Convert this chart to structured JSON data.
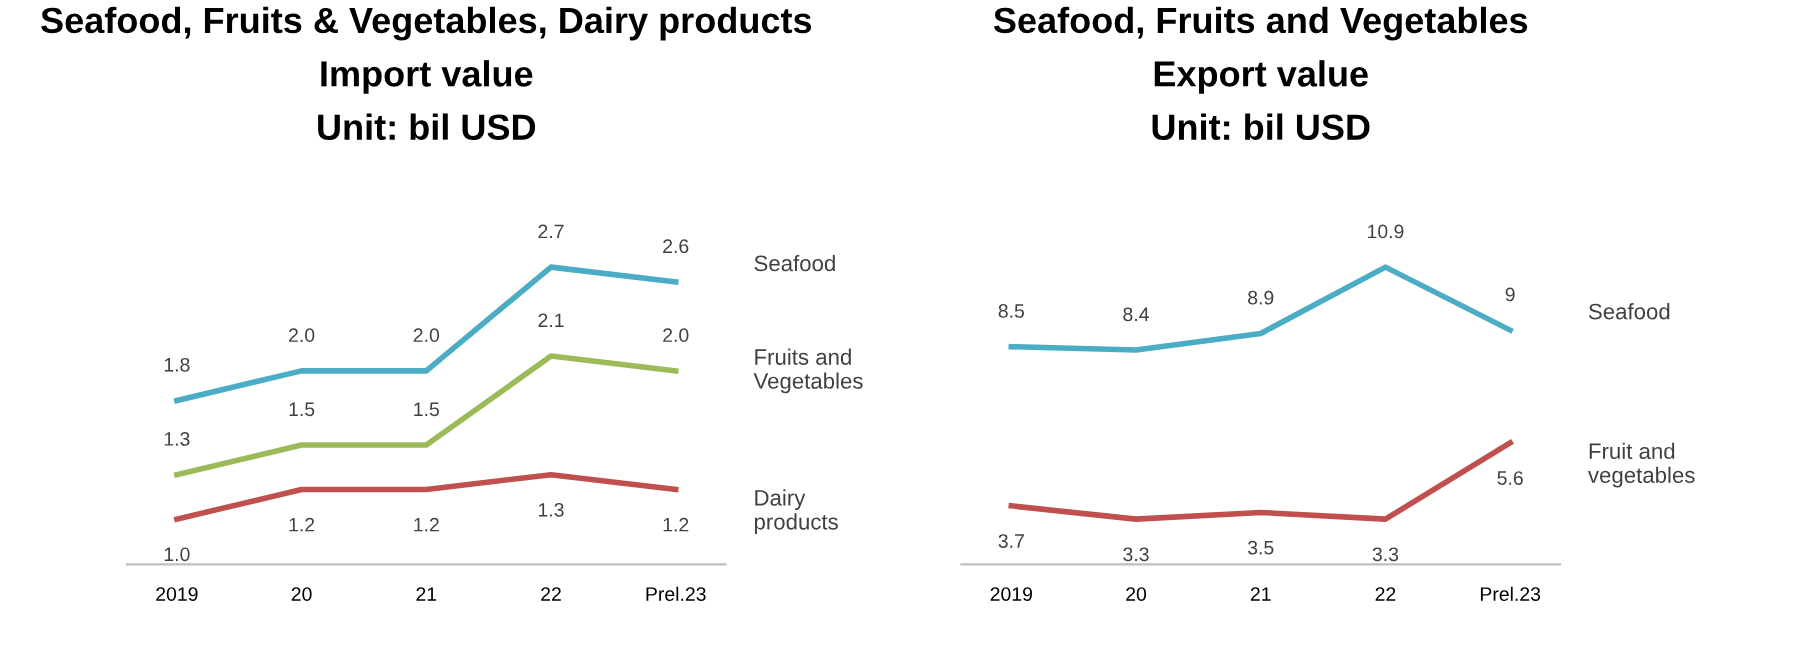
{
  "chart_data": [
    {
      "type": "line",
      "title": "Seafood, Fruits & Vegetables, Dairy products\nImport value\nUnit: bil USD",
      "categories": [
        "2019",
        "20",
        "21",
        "22",
        "Prel.23"
      ],
      "tick_labels": "x",
      "grid": false,
      "legend": false,
      "marker": "none",
      "line_style": "solid",
      "series": [
        {
          "name": "Seafood",
          "color": "#4bacc6",
          "values": [
            1.8,
            2.0,
            2.0,
            2.7,
            2.6
          ],
          "value_labels": [
            "1.8",
            "2.0",
            "2.0",
            "2.7",
            "2.6"
          ]
        },
        {
          "name": "Fruits and\nVegetables",
          "color": "#9bbb59",
          "values": [
            1.3,
            1.5,
            1.5,
            2.1,
            2.0
          ],
          "value_labels": [
            "1.3",
            "1.5",
            "1.5",
            "2.1",
            "2.0"
          ]
        },
        {
          "name": "Dairy\nproducts",
          "color": "#c0504d",
          "values": [
            1.0,
            1.2,
            1.2,
            1.3,
            1.2
          ],
          "value_labels": [
            "1.0",
            "1.2",
            "1.2",
            "1.3",
            "1.2"
          ]
        }
      ]
    },
    {
      "type": "line",
      "title": "Seafood, Fruits and Vegetables\nExport value\nUnit: bil USD",
      "categories": [
        "2019",
        "20",
        "21",
        "22",
        "Prel.23"
      ],
      "data_labels": true,
      "tick_labels": "x",
      "grid": false,
      "legend": false,
      "marker": "none",
      "line_style": "solid",
      "series": [
        {
          "name": "Seafood",
          "color": "#4bacc6",
          "values": [
            8.5,
            8.4,
            8.9,
            10.9,
            9
          ]
        },
        {
          "name": "Fruit and\nvegetables",
          "color": "#c0504d",
          "values": [
            3.7,
            3.3,
            3.5,
            3.3,
            5.6
          ]
        }
      ]
    }
  ]
}
